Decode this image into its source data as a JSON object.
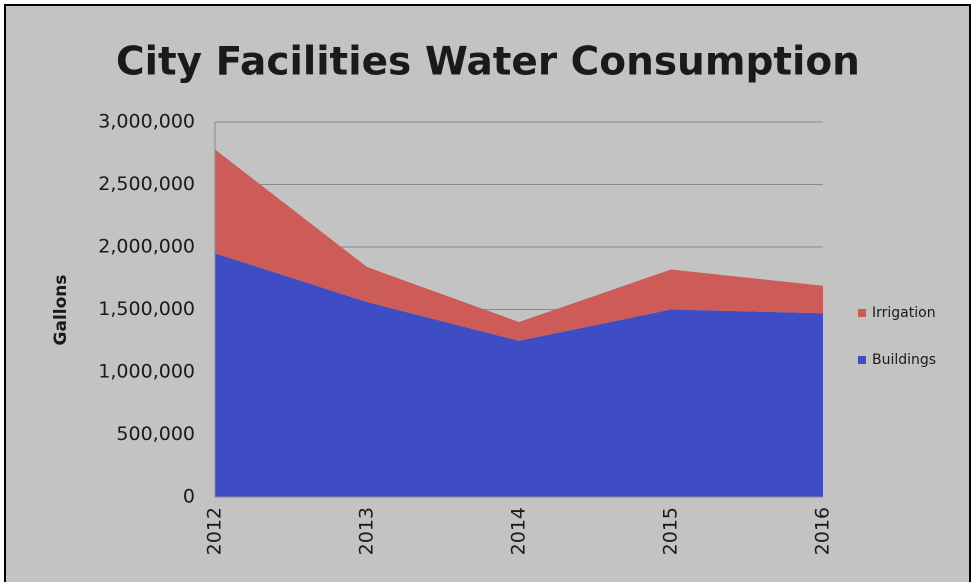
{
  "chart_data": {
    "type": "area",
    "stacked": true,
    "title": "City Facilities Water Consumption",
    "y_label": "Gallons",
    "categories": [
      "2012",
      "2013",
      "2014",
      "2015",
      "2016"
    ],
    "series": [
      {
        "name": "Buildings",
        "color": "#3f4dc4",
        "values": [
          1950000,
          1560000,
          1250000,
          1500000,
          1470000
        ]
      },
      {
        "name": "Irrigation",
        "color": "#cd5c58",
        "values": [
          830000,
          280000,
          150000,
          320000,
          220000
        ]
      }
    ],
    "ylim": [
      0,
      3000000
    ],
    "yticks": [
      0,
      {
        "value": 500000,
        "label": "500,000"
      },
      {
        "value": 1000000,
        "label": "1,000,000"
      },
      {
        "value": 1500000,
        "label": "1,500,000"
      },
      {
        "value": 2000000,
        "label": "2,000,000"
      },
      {
        "value": 2500000,
        "label": "2,500,000"
      },
      {
        "value": 3000000,
        "label": "3,000,000"
      }
    ],
    "grid": true,
    "legend": "right"
  }
}
